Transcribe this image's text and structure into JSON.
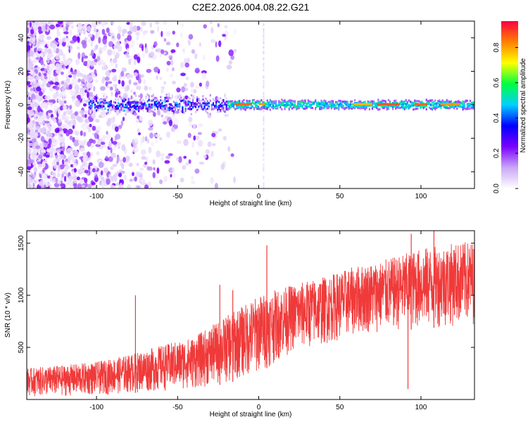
{
  "title": "C2E2.2026.004.08.22.G21",
  "chart_data": [
    {
      "type": "heatmap",
      "xlabel": "Height of straight line (km)",
      "ylabel": "Frequency (Hz)",
      "xlim": [
        -143,
        133
      ],
      "ylim": [
        -50,
        50
      ],
      "xticks": [
        -100,
        -50,
        0,
        50,
        100
      ],
      "yticks": [
        -40,
        -20,
        0,
        20,
        40
      ],
      "grid": false,
      "description_values": {
        "main_band_center_hz": 0,
        "main_band_start_km": -105,
        "scatter_region_km": [
          -143,
          -20
        ]
      },
      "colorbar": {
        "label": "Normalized spectral amplitude",
        "range": [
          0.0,
          0.95
        ],
        "ticks": [
          0.0,
          0.2,
          0.4,
          0.6,
          0.8
        ],
        "colormap": [
          "#ffffff",
          "#c9a6f5",
          "#7a00ff",
          "#0000ff",
          "#00d0ff",
          "#00ff40",
          "#ffff00",
          "#ff8000",
          "#ff0040"
        ]
      }
    },
    {
      "type": "line",
      "xlabel": "Height of straight line (km)",
      "ylabel": "SNR (10 * v/v)",
      "xlim": [
        -143,
        133
      ],
      "ylim": [
        0,
        1620
      ],
      "xticks": [
        -100,
        -50,
        0,
        50,
        100
      ],
      "yticks": [
        500,
        1000,
        1500
      ],
      "series": [
        {
          "name": "SNR",
          "color": "#f03a3a",
          "x": [
            -143,
            -120,
            -100,
            -80,
            -60,
            -40,
            -20,
            0,
            20,
            40,
            60,
            80,
            100,
            120,
            133
          ],
          "mean": [
            150,
            170,
            200,
            240,
            290,
            330,
            400,
            500,
            700,
            780,
            840,
            880,
            920,
            950,
            960
          ],
          "upper": [
            300,
            330,
            360,
            430,
            520,
            600,
            800,
            1000,
            1100,
            1180,
            1280,
            1350,
            1450,
            1500,
            1520
          ],
          "lower": [
            30,
            30,
            40,
            60,
            80,
            100,
            150,
            250,
            450,
            520,
            620,
            650,
            680,
            700,
            720
          ],
          "spikes": [
            [
              -76,
              1000
            ],
            [
              -24,
              1100
            ],
            [
              -16,
              1050
            ],
            [
              5,
              1480
            ],
            [
              94,
              1590
            ],
            [
              108,
              1620
            ]
          ]
        }
      ]
    }
  ]
}
